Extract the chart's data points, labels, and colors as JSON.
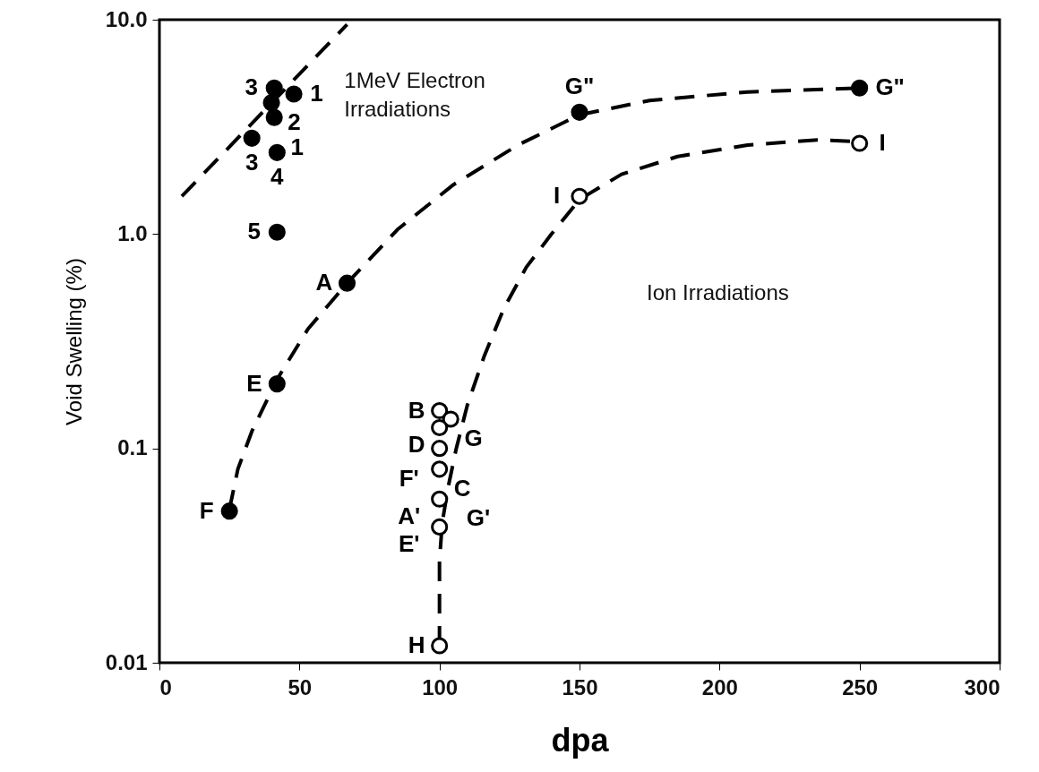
{
  "chart_data": {
    "type": "scatter",
    "xlabel": "dpa",
    "ylabel": "Void Swelling (%)",
    "log": true,
    "grid": false,
    "xlim": [
      0,
      300
    ],
    "xticks": [
      0,
      50,
      100,
      150,
      200,
      250,
      300
    ],
    "ylim": [
      0.01,
      10
    ],
    "yticks": [
      {
        "value": 0.01,
        "label": "0.01"
      },
      {
        "value": 0.1,
        "label": "0.1"
      },
      {
        "value": 1,
        "label": "1.0"
      },
      {
        "value": 10,
        "label": "10.0"
      }
    ],
    "series": [
      {
        "type": "line",
        "color": "#000000",
        "line_style": "dashed",
        "marker": "none",
        "x": [
          8,
          67
        ],
        "values": [
          1.5,
          9.5
        ]
      },
      {
        "type": "line",
        "color": "#000000",
        "line_style": "dashed",
        "marker": "none",
        "x": [
          25,
          28,
          33,
          42,
          53,
          67,
          85,
          105,
          128,
          150,
          175,
          210,
          250
        ],
        "values": [
          0.052,
          0.08,
          0.12,
          0.21,
          0.36,
          0.59,
          1.05,
          1.7,
          2.6,
          3.6,
          4.2,
          4.6,
          4.8
        ]
      },
      {
        "type": "line",
        "color": "#000000",
        "line_style": "dashed",
        "marker": "none",
        "x": [
          100,
          100,
          101,
          103,
          106,
          110,
          116,
          123,
          131,
          140,
          150,
          165,
          185,
          210,
          235,
          250
        ],
        "values": [
          0.012,
          0.03,
          0.045,
          0.065,
          0.1,
          0.16,
          0.27,
          0.45,
          0.7,
          1.0,
          1.45,
          1.9,
          2.3,
          2.6,
          2.75,
          2.7
        ]
      },
      {
        "type": "scatter",
        "color": "#000000",
        "marker": "circle",
        "x": [
          41,
          40,
          48,
          41,
          33,
          42,
          42,
          67,
          42,
          25,
          150,
          250
        ],
        "values": [
          4.8,
          4.1,
          4.5,
          3.5,
          2.8,
          2.4,
          1.02,
          0.59,
          0.2,
          0.051,
          3.7,
          4.8
        ]
      },
      {
        "type": "scatter",
        "color": "#ffffff",
        "marker": "circle",
        "x": [
          100,
          104,
          100,
          100,
          100,
          100,
          100,
          100,
          150,
          250
        ],
        "values": [
          0.15,
          0.137,
          0.125,
          0.1,
          0.08,
          0.058,
          0.043,
          0.012,
          1.5,
          2.65
        ]
      }
    ],
    "annotations": [
      {
        "text": "3",
        "x": 41,
        "y": 4.8
      },
      {
        "text": "2",
        "x": 40,
        "y": 4.1
      },
      {
        "text": "1",
        "x": 48,
        "y": 4.5
      },
      {
        "text": "1",
        "x": 41,
        "y": 3.5
      },
      {
        "text": "3",
        "x": 33,
        "y": 2.8
      },
      {
        "text": "4",
        "x": 42,
        "y": 2.4
      },
      {
        "text": "5",
        "x": 42,
        "y": 1.02
      },
      {
        "text": "A",
        "x": 67,
        "y": 0.59
      },
      {
        "text": "E",
        "x": 42,
        "y": 0.2
      },
      {
        "text": "F",
        "x": 25,
        "y": 0.051
      },
      {
        "text": "G\"",
        "x": 150,
        "y": 3.7
      },
      {
        "text": "G\"",
        "x": 250,
        "y": 4.8
      },
      {
        "text": "I",
        "x": 150,
        "y": 1.5
      },
      {
        "text": "I",
        "x": 250,
        "y": 2.65
      },
      {
        "text": "B",
        "x": 100,
        "y": 0.15
      },
      {
        "text": "G",
        "x": 104,
        "y": 0.137
      },
      {
        "text": "D",
        "x": 100,
        "y": 0.125
      },
      {
        "text": "F'",
        "x": 100,
        "y": 0.1
      },
      {
        "text": "C",
        "x": 100,
        "y": 0.08
      },
      {
        "text": "A'",
        "x": 100,
        "y": 0.058
      },
      {
        "text": "G'",
        "x": 103,
        "y": 0.065
      },
      {
        "text": "E'",
        "x": 100,
        "y": 0.043
      },
      {
        "text": "H",
        "x": 100,
        "y": 0.012
      },
      "1MeV Electron Irradiations",
      "Ion Irradiations"
    ]
  }
}
